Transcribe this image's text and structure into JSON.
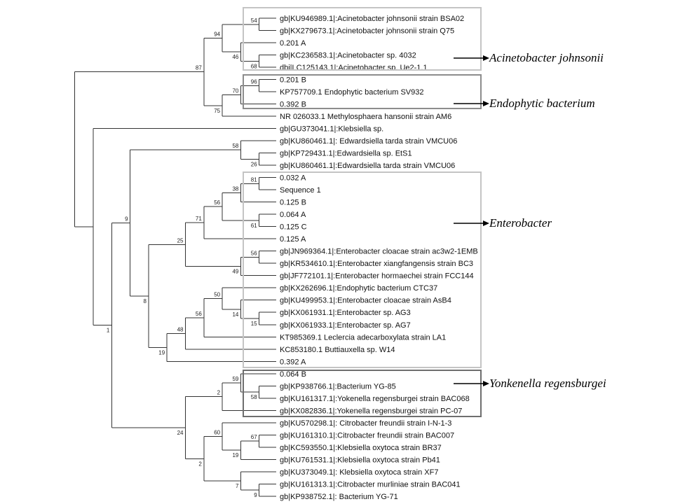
{
  "tree": {
    "children": [
      {
        "bootstrap": "87",
        "children": [
          {
            "bootstrap": "94",
            "children": [
              {
                "bootstrap": "54",
                "children": [
                  {
                    "label": "gb|KU946989.1|:Acinetobacter johnsonii strain BSA02"
                  },
                  {
                    "label": "gb|KX279673.1|:Acinetobacter johnsonii strain Q75"
                  }
                ]
              },
              {
                "bootstrap": "46",
                "children": [
                  {
                    "label": "0.201 A"
                  },
                  {
                    "bootstrap": "68",
                    "children": [
                      {
                        "label": "gb|KC236583.1|:Acinetobacter sp. 4032"
                      },
                      {
                        "label": "dbj|LC125143.1|:Acinetobacter sp. Ue2-1.1"
                      }
                    ]
                  }
                ]
              }
            ]
          },
          {
            "bootstrap": "75",
            "children": [
              {
                "bootstrap": "70",
                "children": [
                  {
                    "bootstrap": "96",
                    "children": [
                      {
                        "label": "0.201 B"
                      },
                      {
                        "label": "KP757709.1 Endophytic bacterium SV932"
                      }
                    ]
                  },
                  {
                    "label": "0.392 B"
                  }
                ]
              },
              {
                "label": "NR 026033.1 Methylosphaera hansonii strain AM6"
              }
            ]
          }
        ]
      },
      {
        "children": [
          {
            "label": "gb|GU373041.1|:Klebsiella sp."
          },
          {
            "bootstrap": "1",
            "children": [
              {
                "bootstrap": "9",
                "children": [
                  {
                    "bootstrap": "58",
                    "children": [
                      {
                        "label": "gb|KU860461.1|: Edwardsiella tarda strain VMCU06"
                      },
                      {
                        "bootstrap": "26",
                        "children": [
                          {
                            "label": "gb|KP729431.1|:Edwardsiella sp. EtS1"
                          },
                          {
                            "label": "gb|KU860461.1|:Edwardsiella tarda strain VMCU06"
                          }
                        ]
                      }
                    ]
                  },
                  {
                    "bootstrap": "8",
                    "children": [
                      {
                        "bootstrap": "25",
                        "children": [
                          {
                            "bootstrap": "71",
                            "children": [
                              {
                                "bootstrap": "56",
                                "children": [
                                  {
                                    "bootstrap": "38",
                                    "children": [
                                      {
                                        "bootstrap": "81",
                                        "children": [
                                          {
                                            "label": "0.032 A"
                                          },
                                          {
                                            "label": "Sequence 1"
                                          }
                                        ]
                                      },
                                      {
                                        "label": "0.125 B"
                                      }
                                    ]
                                  },
                                  {
                                    "bootstrap": "61",
                                    "children": [
                                      {
                                        "label": "0.064 A"
                                      },
                                      {
                                        "label": "0.125 C"
                                      }
                                    ]
                                  }
                                ]
                              },
                              {
                                "label": "0.125 A"
                              }
                            ]
                          },
                          {
                            "bootstrap": "49",
                            "children": [
                              {
                                "bootstrap": "56",
                                "children": [
                                  {
                                    "label": "gb|JN969364.1|:Enterobacter cloacae strain ac3w2-1EMB"
                                  },
                                  {
                                    "label": "gb|KR534610.1|:Enterobacter xiangfangensis strain BC3"
                                  }
                                ]
                              },
                              {
                                "label": "gb|JF772101.1|:Enterobacter hormaechei strain FCC144"
                              }
                            ]
                          }
                        ]
                      },
                      {
                        "bootstrap": "19",
                        "children": [
                          {
                            "bootstrap": "48",
                            "children": [
                              {
                                "bootstrap": "56",
                                "children": [
                                  {
                                    "bootstrap": "50",
                                    "children": [
                                      {
                                        "label": "gb|KX262696.1|:Endophytic bacterium CTC37"
                                      },
                                      {
                                        "bootstrap": "14",
                                        "children": [
                                          {
                                            "label": "gb|KU499953.1|:Enterobacter cloacae strain AsB4"
                                          },
                                          {
                                            "bootstrap": "15",
                                            "children": [
                                              {
                                                "label": "gb|KX061931.1|:Enterobacter sp. AG3"
                                              },
                                              {
                                                "label": "gb|KX061933.1|:Enterobacter sp. AG7"
                                              }
                                            ]
                                          }
                                        ]
                                      }
                                    ]
                                  },
                                  {
                                    "label": "KT985369.1 Leclercia adecarboxylata strain LA1"
                                  }
                                ]
                              },
                              {
                                "label": "KC853180.1 Buttiauxella sp. W14"
                              }
                            ]
                          },
                          {
                            "label": "0.392 A"
                          }
                        ]
                      }
                    ]
                  }
                ]
              },
              {
                "bootstrap": "24",
                "children": [
                  {
                    "bootstrap": "2",
                    "children": [
                      {
                        "bootstrap": "59",
                        "children": [
                          {
                            "label": "0.064 B"
                          },
                          {
                            "bootstrap": "58",
                            "children": [
                              {
                                "label": "gb|KP938766.1|:Bacterium YG-85"
                              },
                              {
                                "label": "gb|KU161317.1|:Yokenella regensburgei strain BAC068"
                              }
                            ]
                          }
                        ]
                      },
                      {
                        "label": "gb|KX082836.1|:Yokenella regensburgei strain PC-07"
                      }
                    ]
                  },
                  {
                    "bootstrap": "2",
                    "children": [
                      {
                        "bootstrap": "60",
                        "children": [
                          {
                            "label": "gb|KU570298.1|: Citrobacter freundii strain I-N-1-3"
                          },
                          {
                            "bootstrap": "19",
                            "children": [
                              {
                                "bootstrap": "67",
                                "children": [
                                  {
                                    "label": "gb|KU161310.1|:Citrobacter freundii strain BAC007"
                                  },
                                  {
                                    "label": "gb|KC593550.1|:Klebsiella oxytoca strain BR37"
                                  }
                                ]
                              },
                              {
                                "label": "gb|KU761531.1|:Klebsiella oxytoca strain Pb41"
                              }
                            ]
                          }
                        ]
                      },
                      {
                        "bootstrap": "7",
                        "children": [
                          {
                            "label": "gb|KU373049.1|: Klebsiella oxytoca strain XF7"
                          },
                          {
                            "bootstrap": "9",
                            "children": [
                              {
                                "label": "gb|KU161313.1|:Citrobacter murliniae strain BAC041"
                              },
                              {
                                "label": "gb|KP938752.1|: Bacterium YG-71"
                              }
                            ]
                          }
                        ]
                      }
                    ]
                  }
                ]
              }
            ]
          }
        ]
      }
    ]
  },
  "clades": [
    {
      "label": "Acinetobacter johnsonii",
      "box_color": "#c4c4c4"
    },
    {
      "label": "Endophytic bacterium",
      "box_color": "#8c8c8c"
    },
    {
      "label": "Enterobacter",
      "box_color": "#c4c4c4"
    },
    {
      "label": "Yonkenella regensburgei",
      "box_color": "#6e6e6e"
    }
  ]
}
